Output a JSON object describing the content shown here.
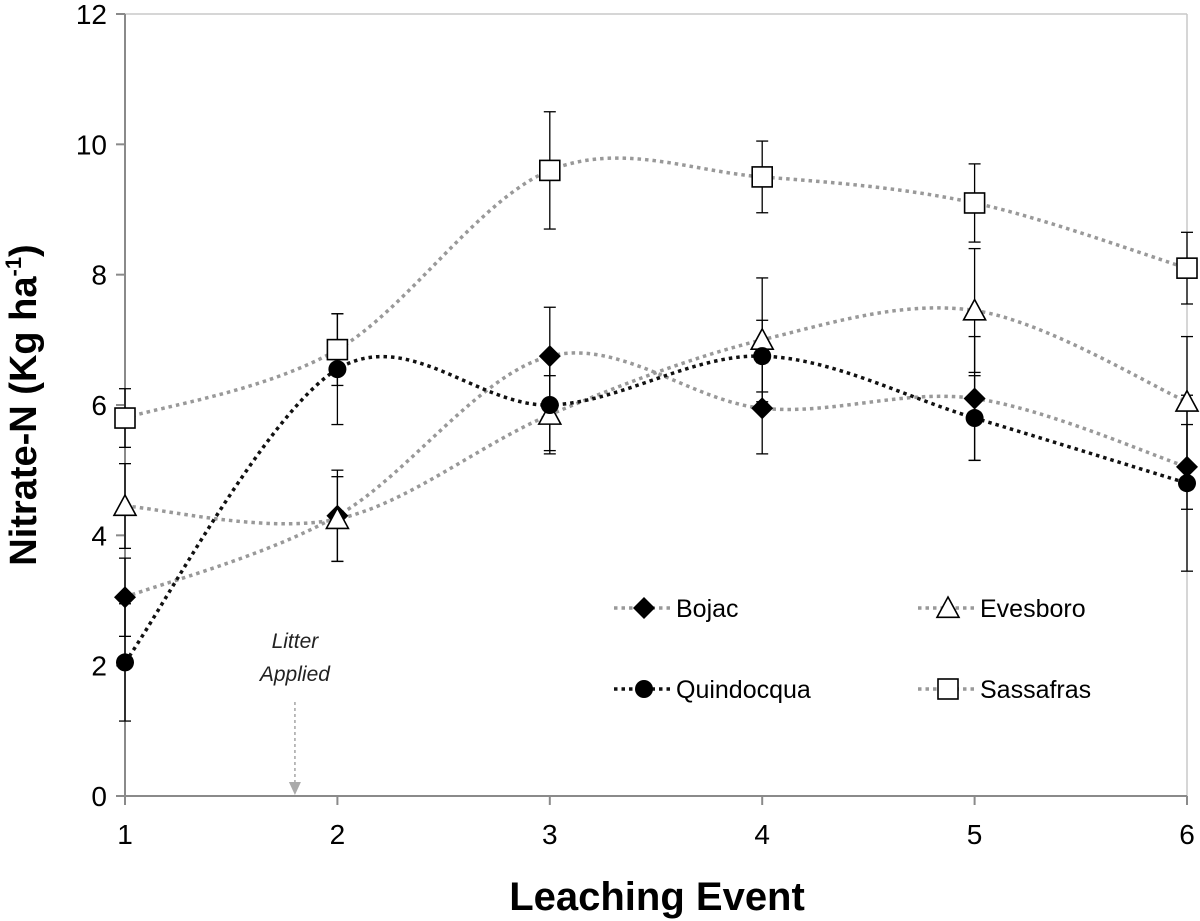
{
  "chart_data": {
    "type": "line",
    "title": "",
    "xlabel": "Leaching Event",
    "ylabel_main": "Nitrate-N (Kg ha",
    "ylabel_sup": "-1",
    "ylabel_end": ")",
    "x": [
      1,
      2,
      3,
      4,
      5,
      6
    ],
    "xlim": [
      1,
      6
    ],
    "ylim": [
      0,
      12
    ],
    "yticks": [
      0,
      2,
      4,
      6,
      8,
      10,
      12
    ],
    "grid": false,
    "legend_position": "lower-right",
    "smooth": true,
    "series": [
      {
        "name": "Bojac",
        "marker": "diamond-filled",
        "line_color": "#999999",
        "marker_color": "#000000",
        "values": [
          3.05,
          4.3,
          6.75,
          5.95,
          6.1,
          5.05
        ],
        "errors": [
          0.6,
          0.7,
          0.75,
          0.7,
          0.95,
          0.65
        ]
      },
      {
        "name": "Evesboro",
        "marker": "triangle-open",
        "line_color": "#999999",
        "marker_color": "#000000",
        "values": [
          4.45,
          4.25,
          5.85,
          7.0,
          7.45,
          6.05
        ],
        "errors": [
          0.65,
          0.65,
          0.6,
          0.95,
          0.95,
          1.0
        ]
      },
      {
        "name": "Quindocqua",
        "marker": "circle-filled",
        "line_color": "#111111",
        "marker_color": "#000000",
        "values": [
          2.05,
          6.55,
          6.0,
          6.75,
          5.8,
          4.8
        ],
        "errors": [
          0.9,
          0.85,
          0.7,
          0.55,
          0.65,
          1.35
        ]
      },
      {
        "name": "Sassafras",
        "marker": "square-open",
        "line_color": "#999999",
        "marker_color": "#000000",
        "values": [
          5.8,
          6.85,
          9.6,
          9.5,
          9.1,
          8.1
        ],
        "errors": [
          0.45,
          0.55,
          0.9,
          0.55,
          0.6,
          0.55
        ]
      }
    ],
    "annotation": {
      "line1": "Litter",
      "line2": "Applied",
      "x": 1.8
    }
  }
}
